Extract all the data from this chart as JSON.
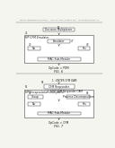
{
  "bg_color": "#f5f5f0",
  "header_text": "Patent Application Publication    Feb. 14, 2013  Sheet 4 of 8    US 2013/0041947 A1",
  "fig6": {
    "label": "FIG. 6",
    "top_label": "51",
    "top_box_text": "Decision Multiplexer",
    "outer_box_label": "41",
    "outer_box_title": "MP CFM Emulator",
    "inner_top_box_text": "Emulator",
    "inner_top_box_label": "47",
    "left_label": "43",
    "left_box_text": "No",
    "right_label": "49",
    "right_box_text": "Yes",
    "bottom_box_text": "MAC Sub-Module",
    "caption": "OpCode = PDM"
  },
  "fig7": {
    "label": "FIG. 7",
    "top_arrow_label1": "1 : ENTER CFM OAM",
    "top_label": "53",
    "top_box_text": "CFM Responder",
    "bottom_arrow_label": "2 : EXIT CFM Responder OAM",
    "outer_box_label": "55",
    "outer_box_title": "MP Encapsulation Interpreter",
    "inner_left_box_text": "Group",
    "inner_right_box_text": "Process Decomposition",
    "inner_left_label": "57",
    "inner_right_label": "59",
    "left_box_text": "No",
    "right_box_text": "Yes",
    "bottom_box_text": "MAC Sub-Module",
    "caption": "OpCode = CFM"
  }
}
